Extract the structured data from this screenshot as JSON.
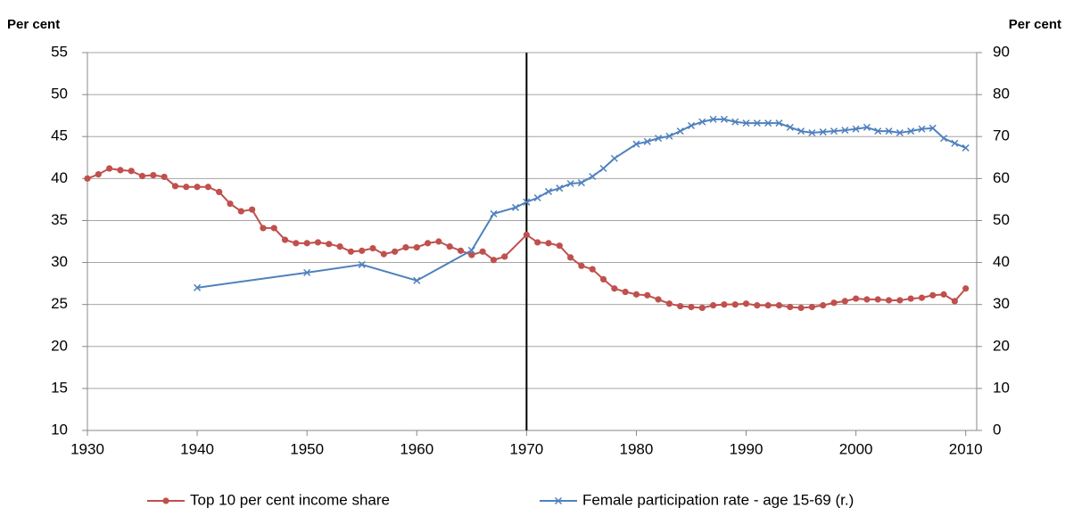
{
  "chart_data": {
    "type": "line",
    "y_label": "Per cent",
    "y2_label": "Per cent",
    "xlim": [
      1930,
      2011
    ],
    "xticks": [
      1930,
      1940,
      1950,
      1960,
      1970,
      1980,
      1990,
      2000,
      2010
    ],
    "ylim": [
      10,
      55
    ],
    "yticks": [
      10,
      15,
      20,
      25,
      30,
      35,
      40,
      45,
      50,
      55
    ],
    "y2lim": [
      0,
      90
    ],
    "y2ticks": [
      0,
      10,
      20,
      30,
      40,
      50,
      60,
      70,
      80,
      90
    ],
    "grid": true,
    "vlines": [
      1970
    ],
    "legend": "bottom",
    "series": [
      {
        "name": "Top 10 per cent income share",
        "color": "#c0504d",
        "marker": "circle",
        "x": [
          1930,
          1931,
          1932,
          1933,
          1934,
          1935,
          1936,
          1937,
          1938,
          1939,
          1940,
          1941,
          1942,
          1943,
          1944,
          1945,
          1946,
          1947,
          1948,
          1949,
          1950,
          1951,
          1952,
          1953,
          1954,
          1955,
          1956,
          1957,
          1958,
          1959,
          1960,
          1961,
          1962,
          1963,
          1964,
          1965,
          1966,
          1967,
          1968,
          1970,
          1971,
          1972,
          1973,
          1974,
          1975,
          1976,
          1977,
          1978,
          1979,
          1980,
          1981,
          1982,
          1983,
          1984,
          1985,
          1986,
          1987,
          1988,
          1989,
          1990,
          1991,
          1992,
          1993,
          1994,
          1995,
          1996,
          1997,
          1998,
          1999,
          2000,
          2001,
          2002,
          2003,
          2004,
          2005,
          2006,
          2007,
          2008,
          2009,
          2010
        ],
        "values": [
          40.0,
          40.5,
          41.2,
          41.0,
          40.9,
          40.3,
          40.4,
          40.2,
          39.1,
          39.0,
          39.0,
          39.0,
          38.4,
          37.0,
          36.1,
          36.3,
          34.1,
          34.1,
          32.7,
          32.3,
          32.3,
          32.4,
          32.2,
          31.9,
          31.3,
          31.4,
          31.7,
          31.0,
          31.3,
          31.8,
          31.8,
          32.3,
          32.5,
          31.9,
          31.4,
          30.9,
          31.3,
          30.3,
          30.7,
          33.3,
          32.4,
          32.3,
          32.0,
          30.6,
          29.6,
          29.2,
          28.0,
          26.9,
          26.5,
          26.2,
          26.1,
          25.6,
          25.1,
          24.8,
          24.7,
          24.6,
          24.9,
          25.0,
          25.0,
          25.1,
          24.9,
          24.9,
          24.9,
          24.7,
          24.6,
          24.7,
          24.9,
          25.2,
          25.4,
          25.7,
          25.6,
          25.6,
          25.5,
          25.5,
          25.7,
          25.8,
          26.1,
          26.2,
          25.4,
          26.9
        ]
      },
      {
        "name": "Female participation rate - age 15-69 (r.)",
        "color": "#4f81bd",
        "marker": "x",
        "axis": "y2",
        "x": [
          1940,
          1950,
          1955,
          1960,
          1965,
          1967,
          1969,
          1970,
          1971,
          1972,
          1973,
          1974,
          1975,
          1976,
          1977,
          1978,
          1980,
          1981,
          1982,
          1983,
          1984,
          1985,
          1986,
          1987,
          1988,
          1989,
          1990,
          1991,
          1992,
          1993,
          1994,
          1995,
          1996,
          1997,
          1998,
          1999,
          2000,
          2001,
          2002,
          2003,
          2004,
          2005,
          2006,
          2007,
          2008,
          2009,
          2010
        ],
        "values": [
          34.0,
          37.6,
          39.5,
          35.7,
          42.9,
          51.6,
          53.1,
          54.4,
          55.4,
          56.9,
          57.7,
          58.8,
          59.0,
          60.5,
          62.4,
          64.8,
          68.2,
          68.8,
          69.6,
          70.1,
          71.3,
          72.6,
          73.5,
          74.1,
          74.1,
          73.5,
          73.2,
          73.2,
          73.2,
          73.2,
          72.2,
          71.3,
          70.9,
          71.1,
          71.3,
          71.5,
          71.8,
          72.2,
          71.3,
          71.3,
          70.9,
          71.3,
          71.8,
          72.0,
          69.6,
          68.4,
          67.3
        ]
      }
    ]
  }
}
